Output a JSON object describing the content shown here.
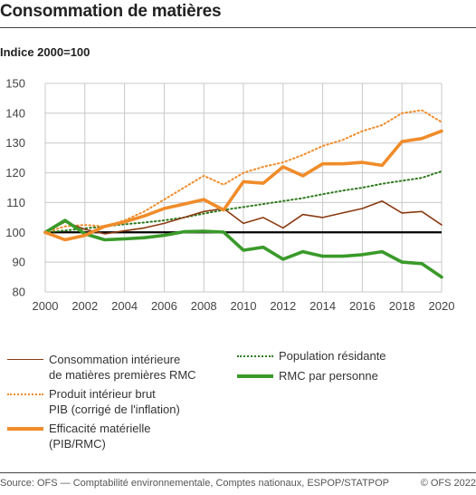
{
  "header": {
    "title": "Consommation de matières",
    "subtitle": "Indice 2000=100"
  },
  "footer": {
    "source": "Source: OFS — Comptabilité environnementale, Comptes nationaux, ESPOP/STATPOP",
    "copyright": "© OFS 2022"
  },
  "colors": {
    "rmc": "#8a3b12",
    "pib": "#f08c2a",
    "efficacite": "#f08c2a",
    "population": "#2f7a1e",
    "rmc_par_personne": "#3a9a2a",
    "baseline": "#000000",
    "grid": "#c8c8c8"
  },
  "chart_data": {
    "type": "line",
    "x": [
      2000,
      2001,
      2002,
      2003,
      2004,
      2005,
      2006,
      2007,
      2008,
      2009,
      2010,
      2011,
      2012,
      2013,
      2014,
      2015,
      2016,
      2017,
      2018,
      2019,
      2020
    ],
    "xticks": [
      "2000",
      "2002",
      "2004",
      "2006",
      "2008",
      "2010",
      "2012",
      "2014",
      "2016",
      "2018",
      "2020"
    ],
    "yticks": [
      "150",
      "140",
      "130",
      "120",
      "110",
      "100",
      "90",
      "80"
    ],
    "ylim": [
      80,
      150
    ],
    "grid": true,
    "reference_line": 100,
    "legend_position": "bottom",
    "series": [
      {
        "key": "rmc",
        "name": "Consommation intérieure de matières premières RMC",
        "label_lines": [
          "Consommation intérieure",
          "de matières premières RMC"
        ],
        "style": "thin-solid",
        "values": [
          100,
          103.5,
          101,
          99.5,
          100.5,
          101.5,
          103,
          105,
          107,
          108,
          103,
          105,
          101.5,
          106,
          105,
          106.5,
          108,
          110.5,
          106.5,
          107,
          102.5
        ]
      },
      {
        "key": "pib",
        "name": "Produit intérieur brut PIB (corrigé de l'inflation)",
        "label_lines": [
          "Produit intérieur brut",
          "PIB (corrigé de l'inflation)"
        ],
        "style": "dotted",
        "values": [
          100,
          102,
          102.5,
          102,
          104,
          107,
          111,
          115,
          119,
          116,
          120,
          122,
          123.5,
          126,
          129,
          131,
          134,
          136,
          140,
          141,
          137
        ]
      },
      {
        "key": "efficacite",
        "name": "Efficacité matérielle (PIB/RMC)",
        "label_lines": [
          "Efficacité matérielle",
          "(PIB/RMC)"
        ],
        "style": "thick-solid",
        "values": [
          100,
          97.5,
          99,
          102,
          103.5,
          105.5,
          108,
          109.5,
          111,
          107.5,
          117,
          116.5,
          122,
          119,
          123,
          123,
          123.5,
          122.5,
          130.5,
          131.5,
          134
        ]
      },
      {
        "key": "population",
        "name": "Population résidante",
        "label_lines": [
          "Population résidante"
        ],
        "style": "dotted-dark",
        "values": [
          100,
          100.6,
          101.3,
          102,
          102.7,
          103.3,
          104,
          105,
          106.3,
          107.5,
          108.5,
          109.5,
          110.5,
          111.5,
          112.8,
          114,
          115,
          116.3,
          117.3,
          118.3,
          120.5
        ]
      },
      {
        "key": "rmc_par_personne",
        "name": "RMC par personne",
        "label_lines": [
          "RMC par personne"
        ],
        "style": "thick-solid-green",
        "values": [
          100,
          104,
          99.5,
          97.5,
          97.8,
          98.2,
          99,
          100.2,
          100.4,
          100.1,
          94,
          95,
          91,
          93.5,
          92,
          92,
          92.5,
          93.5,
          90,
          89.5,
          85
        ]
      }
    ]
  }
}
